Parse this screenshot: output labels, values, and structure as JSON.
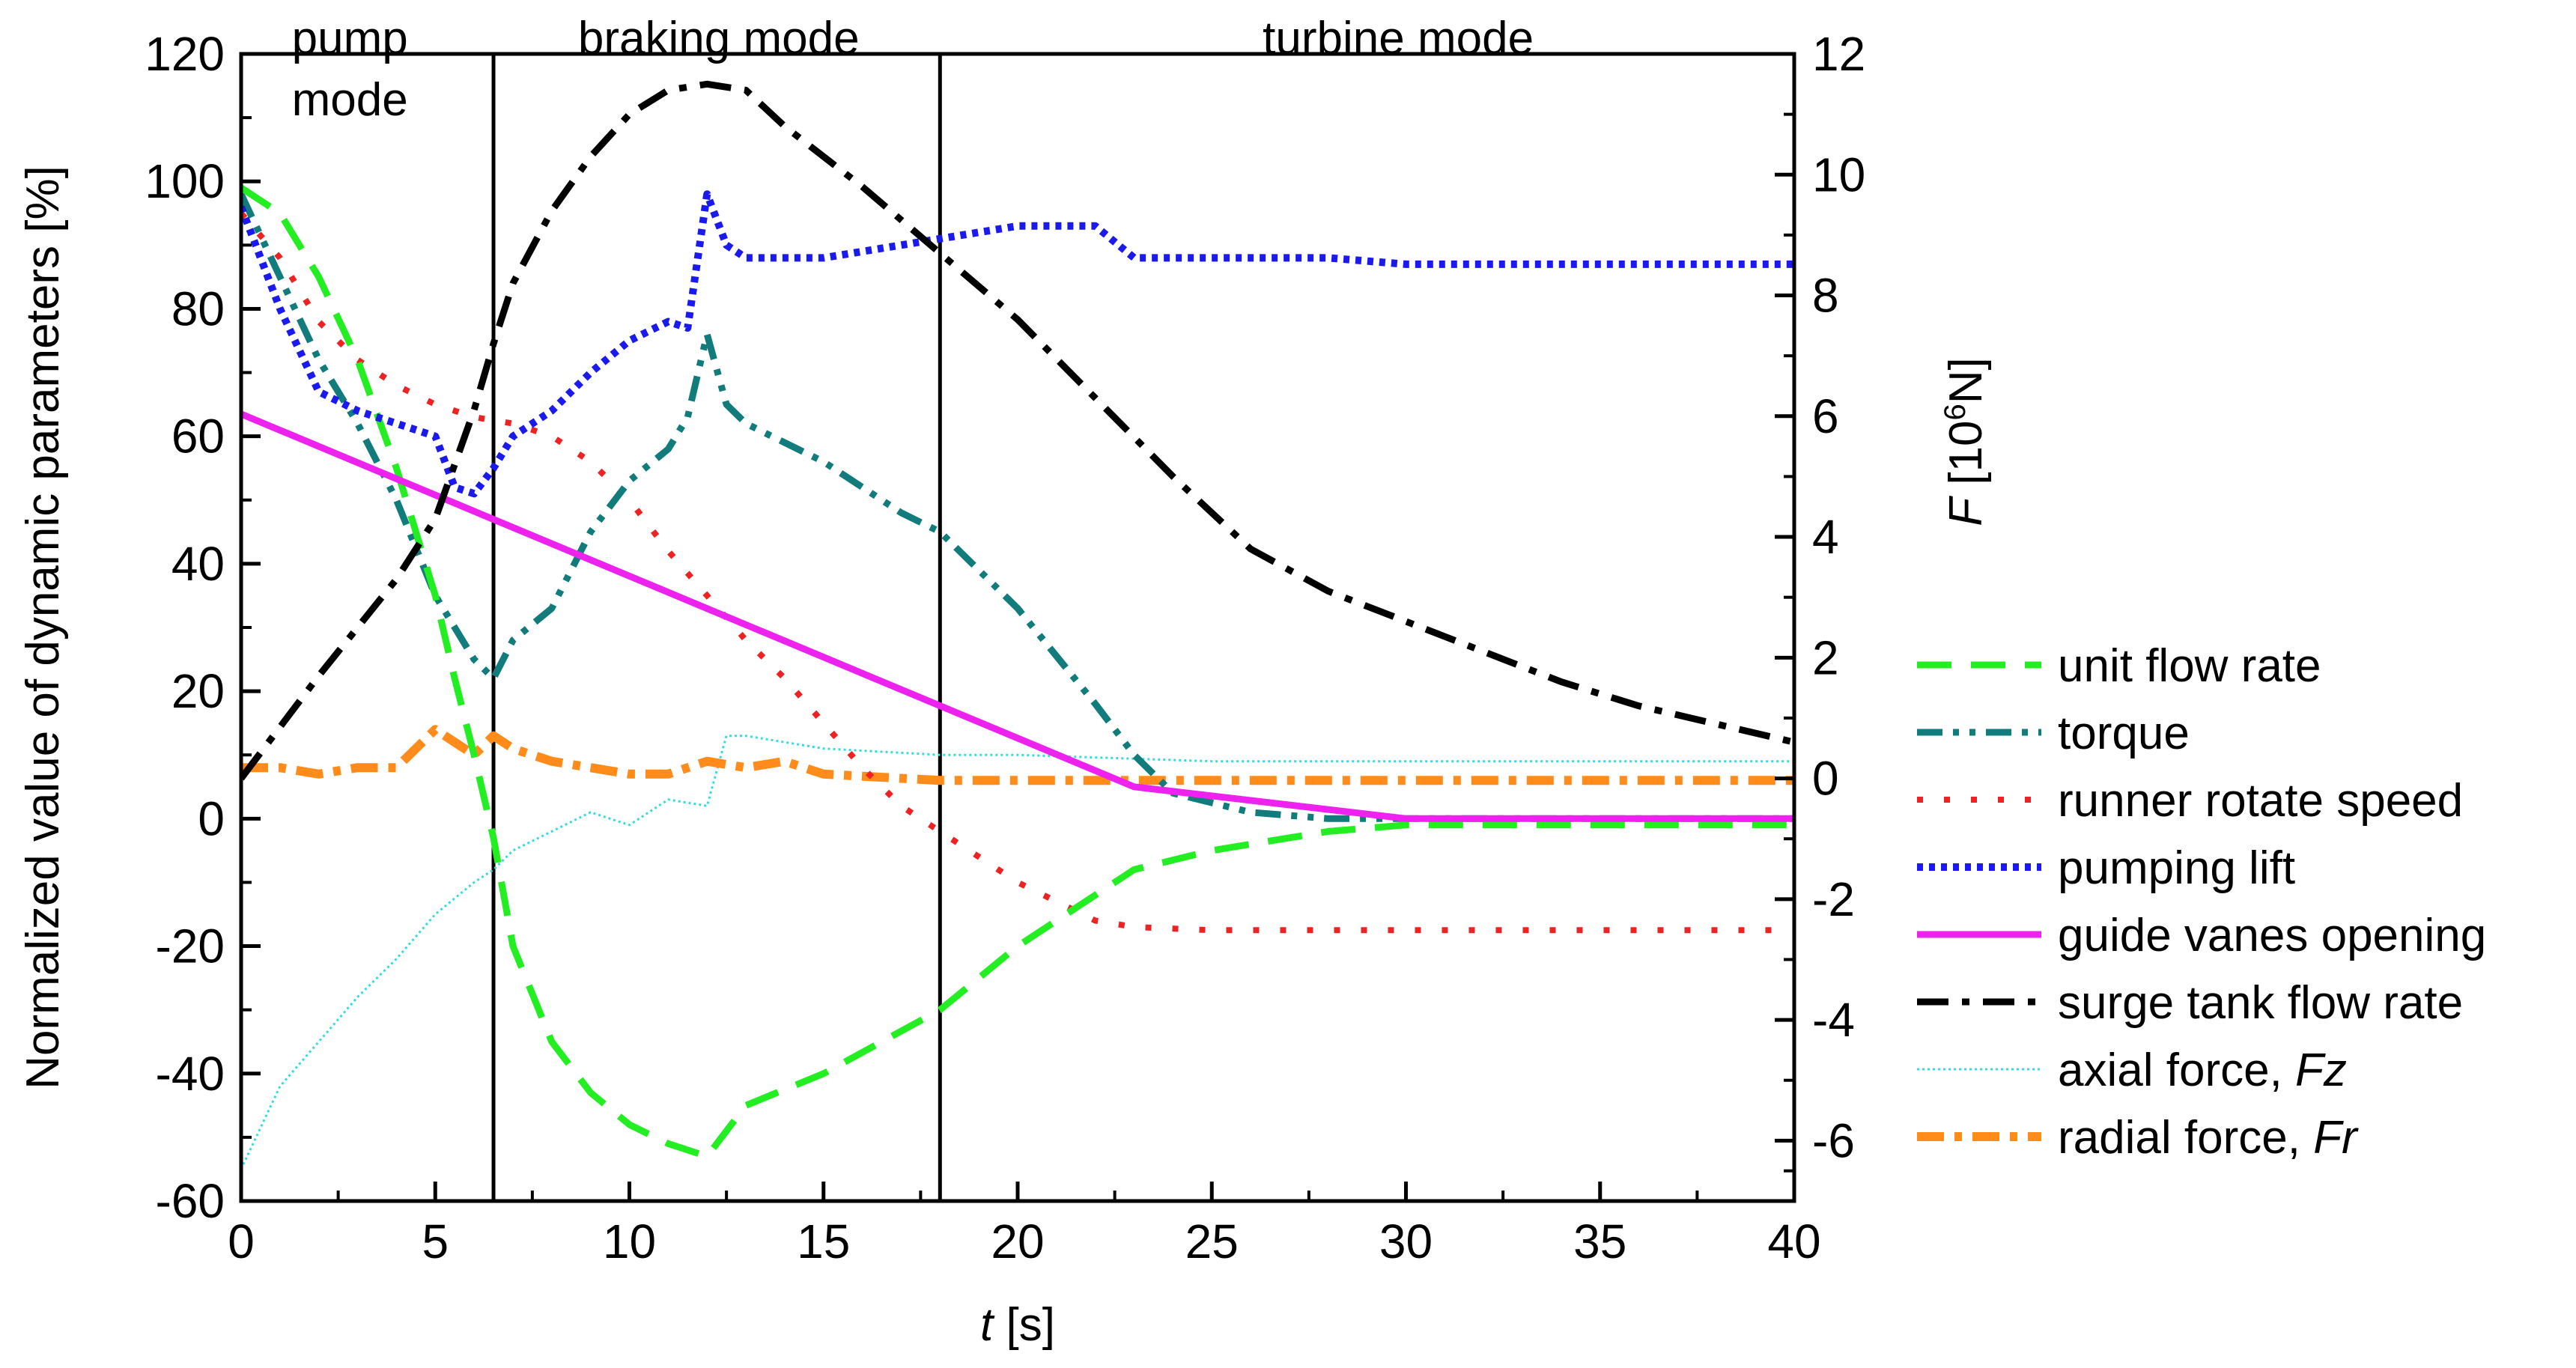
{
  "chart_data": {
    "type": "line",
    "title": "",
    "xlabel": {
      "italic": "t",
      "rest": " [s]"
    },
    "ylabel": "Normalized value of dynamic parameters [%]",
    "y2label": {
      "italic": "F",
      "rest_before_sup": " [10",
      "sup": "6",
      "rest_after_sup": "N]"
    },
    "xlim": [
      0,
      40
    ],
    "ylim": [
      -60,
      120
    ],
    "y2lim": [
      -7,
      12
    ],
    "x_ticks": [
      0,
      5,
      10,
      15,
      20,
      25,
      30,
      35,
      40
    ],
    "y_ticks": [
      -60,
      -40,
      -20,
      0,
      20,
      40,
      60,
      80,
      100,
      120
    ],
    "y2_ticks": [
      -6,
      -4,
      -2,
      0,
      2,
      4,
      6,
      8,
      10,
      12
    ],
    "grid": false,
    "mode_boundaries": [
      6.5,
      18
    ],
    "modes": [
      {
        "lines": [
          "pump",
          "mode"
        ],
        "x": 2.8
      },
      {
        "lines": [
          "braking mode"
        ],
        "x": 12.3
      },
      {
        "lines": [
          "turbine mode"
        ],
        "x": 29.8
      }
    ],
    "legend_position": "right",
    "series": [
      {
        "name": "unit flow rate",
        "color": "#22ee22",
        "style": "dashed",
        "axis": "left",
        "x": [
          0,
          1,
          2,
          3,
          4,
          5,
          5.5,
          6,
          6.5,
          7,
          8,
          9,
          10,
          11,
          12,
          13,
          15,
          18,
          20,
          23,
          25,
          28,
          30,
          35,
          40
        ],
        "y": [
          99,
          95,
          85,
          72,
          55,
          35,
          22,
          10,
          -3,
          -20,
          -35,
          -43,
          -48,
          -51,
          -53,
          -45,
          -40,
          -30,
          -20,
          -8,
          -5,
          -2,
          -1,
          -1,
          -1
        ]
      },
      {
        "name": "torque",
        "color": "#127b7b",
        "style": "dashdotdot",
        "axis": "left",
        "x": [
          0,
          1,
          2,
          3,
          4,
          5,
          6,
          6.5,
          7,
          8,
          9,
          10,
          11,
          11.5,
          12,
          12.5,
          13,
          15,
          17,
          18,
          20,
          22,
          23,
          24,
          26,
          28,
          30,
          40
        ],
        "y": [
          98,
          85,
          72,
          62,
          50,
          35,
          25,
          22,
          28,
          33,
          45,
          53,
          58,
          63,
          76,
          65,
          62,
          56,
          48,
          45,
          33,
          18,
          10,
          4,
          1,
          0,
          0,
          0
        ]
      },
      {
        "name": "runner rotate speed",
        "color": "#ee2222",
        "style": "dotted",
        "axis": "left",
        "x": [
          0,
          1,
          2,
          3,
          4,
          5,
          6,
          7,
          8,
          9,
          10,
          11,
          12,
          13,
          14,
          15,
          16,
          17,
          18,
          19,
          20,
          21,
          22,
          23,
          25,
          30,
          40
        ],
        "y": [
          95,
          88,
          78,
          72,
          68,
          65,
          63,
          62,
          60,
          56,
          50,
          42,
          35,
          28,
          22,
          15,
          8,
          2,
          -2,
          -6,
          -10,
          -13,
          -16,
          -17,
          -17.5,
          -17.5,
          -17.5
        ]
      },
      {
        "name": "pumping lift",
        "color": "#1a1aee",
        "style": "dotted-dense",
        "axis": "left",
        "x": [
          0,
          1,
          2,
          3,
          4,
          5,
          5.5,
          6,
          6.5,
          7,
          8,
          9,
          10,
          11,
          11.5,
          12,
          12.5,
          13,
          15,
          18,
          20,
          22,
          23,
          25,
          28,
          30,
          35,
          40
        ],
        "y": [
          96,
          80,
          67,
          64,
          62,
          60,
          52,
          51,
          55,
          60,
          64,
          70,
          75,
          78,
          77,
          98,
          90,
          88,
          88,
          91,
          93,
          93,
          88,
          88,
          88,
          87,
          87,
          87
        ]
      },
      {
        "name": "guide vanes opening",
        "color": "#ee22ee",
        "style": "solid",
        "axis": "left",
        "x": [
          0,
          23,
          30,
          40
        ],
        "y": [
          63.5,
          5,
          0,
          0
        ]
      },
      {
        "name": "surge tank flow rate",
        "color": "#000000",
        "style": "dashdot",
        "axis": "right",
        "x": [
          0,
          2,
          4,
          5,
          6,
          6.5,
          7,
          8,
          9,
          10,
          11,
          12,
          13,
          14,
          16,
          18,
          20,
          22,
          24,
          26,
          28,
          30,
          32,
          34,
          36,
          38,
          40
        ],
        "y": [
          0,
          1.7,
          3.3,
          4.3,
          6.1,
          7.2,
          8.2,
          9.4,
          10.3,
          11,
          11.4,
          11.5,
          11.4,
          10.8,
          9.8,
          8.7,
          7.6,
          6.3,
          5,
          3.8,
          3.1,
          2.6,
          2.1,
          1.6,
          1.2,
          0.9,
          0.6
        ]
      },
      {
        "name": "axial force, Fz",
        "name_plain": "axial force, ",
        "name_italic": "Fz",
        "color": "#33dddd",
        "style": "dotted-fine",
        "axis": "left",
        "x": [
          0,
          1,
          2,
          3,
          4,
          5,
          6,
          6.5,
          7,
          8,
          9,
          10,
          11,
          12,
          12.5,
          13,
          15,
          18,
          20,
          25,
          30,
          35,
          40
        ],
        "y": [
          -55,
          -42,
          -35,
          -28,
          -22,
          -15,
          -10,
          -8,
          -5,
          -2,
          1,
          -1,
          3,
          2,
          13,
          13,
          11,
          10,
          10,
          9,
          9,
          9,
          9
        ]
      },
      {
        "name": "radial force, Fr",
        "name_plain": "radial force, ",
        "name_italic": "Fr",
        "color": "#ff8c1a",
        "style": "dashdot-thick",
        "axis": "left",
        "x": [
          0,
          1,
          2,
          3,
          4,
          5,
          5.5,
          6,
          6.5,
          7,
          8,
          9,
          10,
          11,
          12,
          13,
          14,
          15,
          18,
          20,
          25,
          30,
          35,
          40
        ],
        "y": [
          8,
          8,
          7,
          8,
          8,
          14,
          12,
          10,
          13,
          11,
          9,
          8,
          7,
          7,
          9,
          8,
          9,
          7,
          6,
          6,
          6,
          6,
          6,
          6
        ]
      }
    ]
  }
}
